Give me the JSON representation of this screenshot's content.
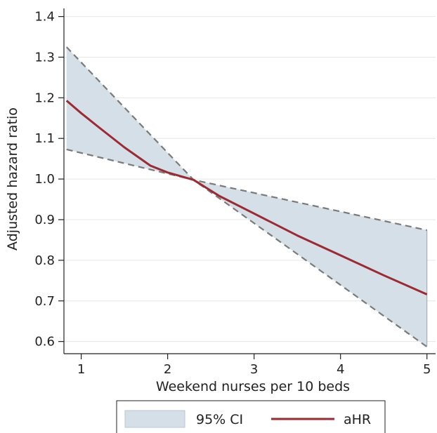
{
  "chart_data": {
    "type": "line",
    "xlabel": "Weekend nurses per 10 beds",
    "ylabel": "Adjusted hazard ratio",
    "xlim": [
      0.8,
      5.1
    ],
    "ylim": [
      0.57,
      1.42
    ],
    "x_ticks": [
      1,
      2,
      3,
      4,
      5
    ],
    "y_ticks": [
      0.6,
      0.7,
      0.8,
      0.9,
      1.0,
      1.1,
      1.2,
      1.3,
      1.4
    ],
    "x_tick_labels": [
      "1",
      "2",
      "3",
      "4",
      "5"
    ],
    "y_tick_labels": [
      "0.6",
      "0.7",
      "0.8",
      "0.9",
      "1.0",
      "1.1",
      "1.2",
      "1.3",
      "1.4"
    ],
    "grid": "horizontal",
    "legend_position": "bottom",
    "series": [
      {
        "name": "aHR",
        "kind": "line",
        "color": "#9b2a32",
        "x": [
          0.83,
          1.0,
          1.2,
          1.5,
          1.8,
          2.0,
          2.3,
          2.6,
          3.0,
          3.5,
          4.0,
          4.5,
          5.0
        ],
        "y": [
          1.193,
          1.162,
          1.128,
          1.078,
          1.033,
          1.016,
          0.998,
          0.958,
          0.915,
          0.861,
          0.812,
          0.763,
          0.716
        ]
      },
      {
        "name": "95% CI",
        "kind": "band",
        "color": "#d5dfe7",
        "x": [
          0.83,
          2.3,
          5.0
        ],
        "lower": [
          1.073,
          0.998,
          0.587
        ],
        "upper": [
          1.325,
          0.998,
          0.874
        ]
      }
    ],
    "legend": [
      {
        "label": "95% CI",
        "kind": "band",
        "color": "#d5dfe7"
      },
      {
        "label": "aHR",
        "kind": "line",
        "color": "#9b2a32"
      }
    ]
  }
}
